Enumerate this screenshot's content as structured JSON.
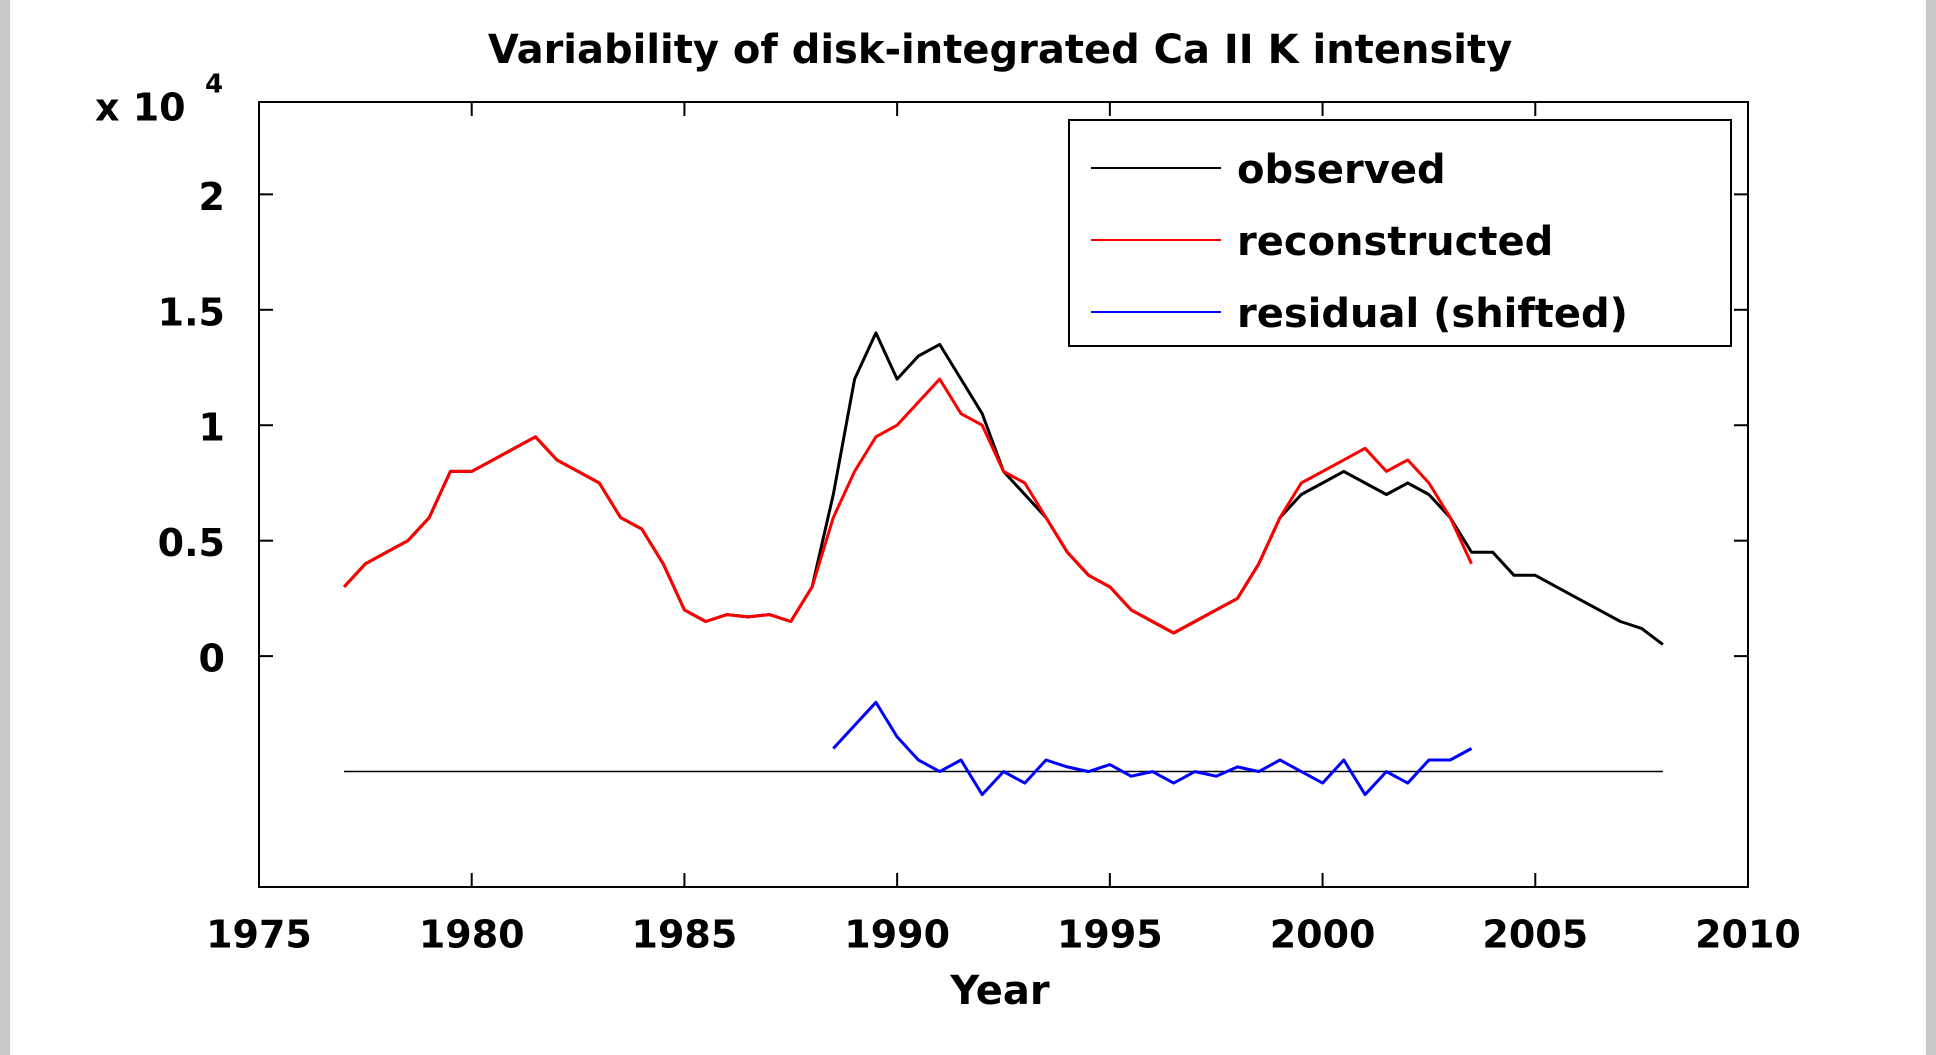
{
  "chart_data": {
    "type": "line",
    "title": "Variability of disk-integrated Ca II K intensity",
    "xlabel": "Year",
    "y_scale_label": {
      "base": "x 10",
      "exponent": "4"
    },
    "x": [
      1977,
      1977.5,
      1978,
      1978.5,
      1979,
      1979.5,
      1980,
      1980.5,
      1981,
      1981.5,
      1982,
      1982.5,
      1983,
      1983.5,
      1984,
      1984.5,
      1985,
      1985.5,
      1986,
      1986.5,
      1987,
      1987.5,
      1988,
      1988.5,
      1989,
      1989.5,
      1990,
      1990.5,
      1991,
      1991.5,
      1992,
      1992.5,
      1993,
      1993.5,
      1994,
      1994.5,
      1995,
      1995.5,
      1996,
      1996.5,
      1997,
      1997.5,
      1998,
      1998.5,
      1999,
      1999.5,
      2000,
      2000.5,
      2001,
      2001.5,
      2002,
      2002.5,
      2003,
      2003.5,
      2004,
      2004.5,
      2005,
      2005.5,
      2006,
      2006.5,
      2007,
      2007.5,
      2008
    ],
    "series": [
      {
        "name": "observed",
        "color": "#000000",
        "values": [
          0.3,
          0.4,
          0.45,
          0.5,
          0.6,
          0.8,
          0.8,
          0.85,
          0.9,
          0.95,
          0.85,
          0.8,
          0.75,
          0.6,
          0.55,
          0.4,
          0.2,
          0.15,
          0.18,
          0.17,
          0.18,
          0.15,
          0.3,
          0.7,
          1.2,
          1.4,
          1.2,
          1.3,
          1.35,
          1.2,
          1.05,
          0.8,
          0.7,
          0.6,
          0.45,
          0.35,
          0.3,
          0.2,
          0.15,
          0.1,
          0.15,
          0.2,
          0.25,
          0.4,
          0.6,
          0.7,
          0.75,
          0.8,
          0.75,
          0.7,
          0.75,
          0.7,
          0.6,
          0.45,
          0.45,
          0.35,
          0.35,
          0.3,
          0.25,
          0.2,
          0.15,
          0.12,
          0.05
        ]
      },
      {
        "name": "reconstructed",
        "color": "#ff0000",
        "values": [
          0.3,
          0.4,
          0.45,
          0.5,
          0.6,
          0.8,
          0.8,
          0.85,
          0.9,
          0.95,
          0.85,
          0.8,
          0.75,
          0.6,
          0.55,
          0.4,
          0.2,
          0.15,
          0.18,
          0.17,
          0.18,
          0.15,
          0.3,
          0.6,
          0.8,
          0.95,
          1.0,
          1.1,
          1.2,
          1.05,
          1.0,
          0.8,
          0.75,
          0.6,
          0.45,
          0.35,
          0.3,
          0.2,
          0.15,
          0.1,
          0.15,
          0.2,
          0.25,
          0.4,
          0.6,
          0.75,
          0.8,
          0.85,
          0.9,
          0.8,
          0.85,
          0.75,
          0.6,
          0.4,
          null,
          null,
          null,
          null,
          null,
          null,
          null,
          null,
          null
        ]
      },
      {
        "name": "residual (shifted)",
        "color": "#0000ff",
        "values": [
          null,
          null,
          null,
          null,
          null,
          null,
          null,
          null,
          null,
          null,
          null,
          null,
          null,
          null,
          null,
          null,
          null,
          null,
          null,
          null,
          null,
          null,
          null,
          -0.4,
          -0.3,
          -0.2,
          -0.35,
          -0.45,
          -0.5,
          -0.45,
          -0.6,
          -0.5,
          -0.55,
          -0.45,
          -0.48,
          -0.5,
          -0.47,
          -0.52,
          -0.5,
          -0.55,
          -0.5,
          -0.52,
          -0.48,
          -0.5,
          -0.45,
          -0.5,
          -0.55,
          -0.45,
          -0.6,
          -0.5,
          -0.55,
          -0.45,
          -0.45,
          -0.4,
          null,
          null,
          null,
          null,
          null,
          null,
          null,
          null,
          null
        ]
      }
    ],
    "reference_line": {
      "y": -0.5,
      "x": [
        1977,
        2008
      ],
      "color": "#000000"
    },
    "xlim": [
      1975,
      2010
    ],
    "xticks": [
      1975,
      1980,
      1985,
      1990,
      1995,
      2000,
      2005,
      2010
    ],
    "ylim": [
      -1,
      2.4
    ],
    "yticks": [
      0,
      0.5,
      1,
      1.5,
      2
    ],
    "grid": false,
    "legend": "upper right"
  }
}
